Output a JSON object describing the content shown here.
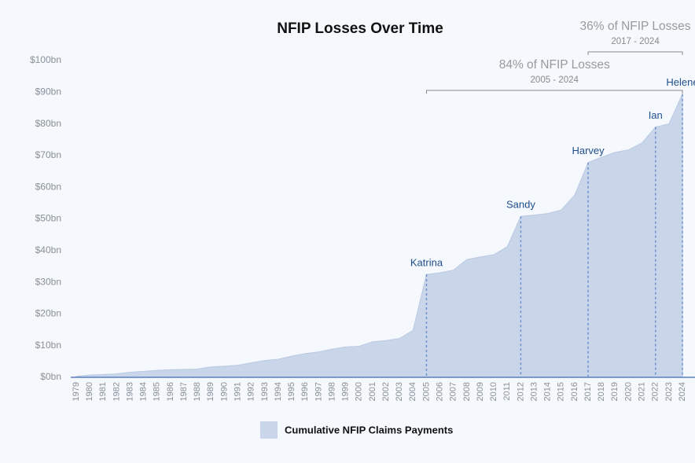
{
  "chart_data": {
    "type": "area",
    "title": "NFIP Losses Over Time",
    "x": [
      1979,
      1980,
      1981,
      1982,
      1983,
      1984,
      1985,
      1986,
      1987,
      1988,
      1989,
      1990,
      1991,
      1992,
      1993,
      1994,
      1995,
      1996,
      1997,
      1998,
      1999,
      2000,
      2001,
      2002,
      2003,
      2004,
      2005,
      2006,
      2007,
      2008,
      2009,
      2010,
      2011,
      2012,
      2013,
      2014,
      2015,
      2016,
      2017,
      2018,
      2019,
      2020,
      2021,
      2022,
      2023,
      2024
    ],
    "series": [
      {
        "name": "Cumulative NFIP Claims Payments",
        "color": "#c9d6ea",
        "values": [
          0.3,
          0.7,
          0.9,
          1.1,
          1.6,
          1.9,
          2.2,
          2.4,
          2.5,
          2.6,
          3.3,
          3.5,
          3.8,
          4.6,
          5.3,
          5.7,
          6.7,
          7.5,
          8.0,
          8.9,
          9.6,
          9.8,
          11.2,
          11.6,
          12.3,
          14.8,
          32.5,
          33.0,
          33.8,
          37.2,
          38.0,
          38.7,
          41.2,
          50.8,
          51.2,
          51.7,
          52.8,
          57.5,
          67.8,
          69.5,
          71.0,
          71.8,
          74.0,
          79.0,
          80.0,
          89.4
        ]
      }
    ],
    "xlim": [
      1979,
      2024
    ],
    "xticks": [
      1979,
      1980,
      1981,
      1982,
      1983,
      1984,
      1985,
      1986,
      1987,
      1988,
      1989,
      1990,
      1991,
      1992,
      1993,
      1994,
      1995,
      1996,
      1997,
      1998,
      1999,
      2000,
      2001,
      2002,
      2003,
      2004,
      2005,
      2006,
      2007,
      2008,
      2009,
      2010,
      2011,
      2012,
      2013,
      2014,
      2015,
      2016,
      2017,
      2018,
      2019,
      2020,
      2021,
      2022,
      2023,
      2024
    ],
    "ylim": [
      0,
      100
    ],
    "yticks": [
      {
        "value": 0,
        "label": "$0bn"
      },
      {
        "value": 10,
        "label": "$10bn"
      },
      {
        "value": 20,
        "label": "$20bn"
      },
      {
        "value": 30,
        "label": "$30bn"
      },
      {
        "value": 40,
        "label": "$40bn"
      },
      {
        "value": 50,
        "label": "$50bn"
      },
      {
        "value": 60,
        "label": "$60bn"
      },
      {
        "value": 70,
        "label": "$70bn"
      },
      {
        "value": 80,
        "label": "$80bn"
      },
      {
        "value": 90,
        "label": "$90bn"
      },
      {
        "value": 100,
        "label": "$100bn"
      }
    ],
    "events": [
      {
        "label": "Katrina",
        "x": 2005
      },
      {
        "label": "Sandy",
        "x": 2012
      },
      {
        "label": "Harvey",
        "x": 2017
      },
      {
        "label": "Ian",
        "x": 2022
      },
      {
        "label": "Helene",
        "x": 2024
      }
    ],
    "brackets": [
      {
        "label": "84% of NFIP Losses",
        "sublabel": "2005 - 2024",
        "x_range": [
          2005,
          2024
        ]
      },
      {
        "label": "36% of NFIP Losses",
        "sublabel": "2017 - 2024",
        "x_range": [
          2017,
          2024
        ]
      }
    ]
  }
}
